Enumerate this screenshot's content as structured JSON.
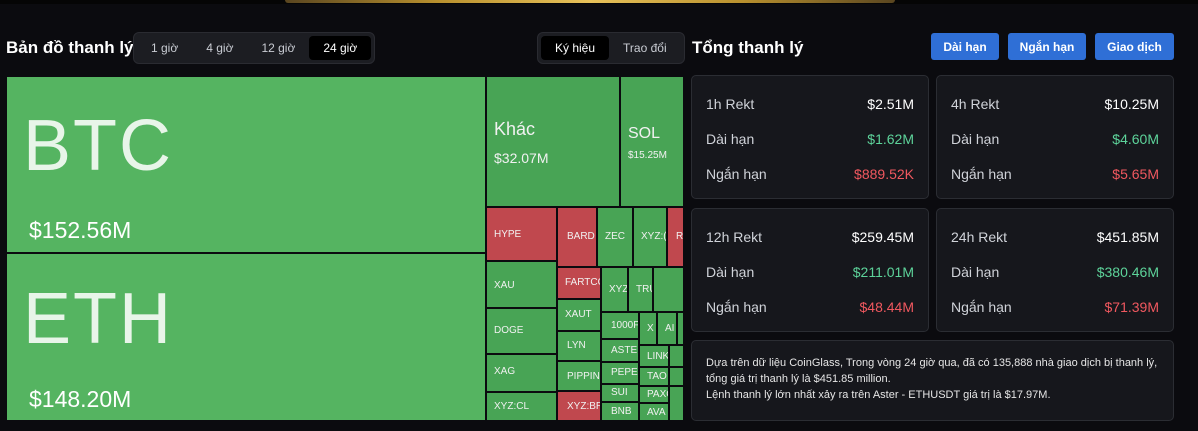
{
  "heatmap": {
    "title": "Bản đồ thanh lý",
    "time_tabs": [
      "1 giờ",
      "4 giờ",
      "12 giờ",
      "24 giờ"
    ],
    "active_time_tab": "24 giờ",
    "view_tabs": [
      "Ký hiệu",
      "Trao đổi"
    ],
    "active_view_tab": "Ký hiệu",
    "tiles": {
      "btc": {
        "symbol": "BTC",
        "value": "$152.56M"
      },
      "eth": {
        "symbol": "ETH",
        "value": "$148.20M"
      },
      "khac": {
        "symbol": "Khác",
        "value": "$32.07M"
      },
      "sol": {
        "symbol": "SOL",
        "value": "$15.25M"
      },
      "hype": "HYPE",
      "bard": "BARD",
      "zec": "ZEC",
      "xyz1": "XYZ:(",
      "r1": "R",
      "xau": "XAU",
      "fartco": "FARTCO",
      "xyz2": "XYZ",
      "tru": "TRU",
      "doge": "DOGE",
      "xaut": "XAUT",
      "p1000": "1000F",
      "x1": "X",
      "ai": "AI",
      "lyn": "LYN",
      "aster": "ASTE",
      "link": "LINK",
      "xag": "XAG",
      "pippin": "PIPPIN",
      "pepe": "PEPE",
      "tao": "TAO",
      "xyzcl": "XYZ:CL",
      "xyzbr": "XYZ:BR",
      "sui": "SUI",
      "bnb": "BNB",
      "paxg": "PAXG",
      "ava": "AVA"
    }
  },
  "total": {
    "title": "Tổng thanh lý",
    "buttons": [
      "Dài hạn",
      "Ngắn hạn",
      "Giao dịch"
    ],
    "cards": [
      {
        "label": "1h Rekt",
        "total": "$2.51M",
        "long_label": "Dài hạn",
        "long": "$1.62M",
        "short_label": "Ngắn hạn",
        "short": "$889.52K"
      },
      {
        "label": "4h Rekt",
        "total": "$10.25M",
        "long_label": "Dài hạn",
        "long": "$4.60M",
        "short_label": "Ngắn hạn",
        "short": "$5.65M"
      },
      {
        "label": "12h Rekt",
        "total": "$259.45M",
        "long_label": "Dài hạn",
        "long": "$211.01M",
        "short_label": "Ngắn hạn",
        "short": "$48.44M"
      },
      {
        "label": "24h Rekt",
        "total": "$451.85M",
        "long_label": "Dài hạn",
        "long": "$380.46M",
        "short_label": "Ngắn hạn",
        "short": "$71.39M"
      }
    ],
    "info_line1": "Dựa trên dữ liệu CoinGlass, Trong vòng 24 giờ qua, đã có 135,888 nhà giao dịch bị thanh lý, tổng giá trị thanh lý là $451.85 million.",
    "info_line2": "Lệnh thanh lý lớn nhất xảy ra trên Aster - ETHUSDT giá trị là $17.97M."
  },
  "colors": {
    "long_green": "#5dd39a",
    "short_red": "#f0585f",
    "accent_blue": "#2f6fd6",
    "tile_green": "#55b461",
    "tile_red": "#c0484e"
  }
}
